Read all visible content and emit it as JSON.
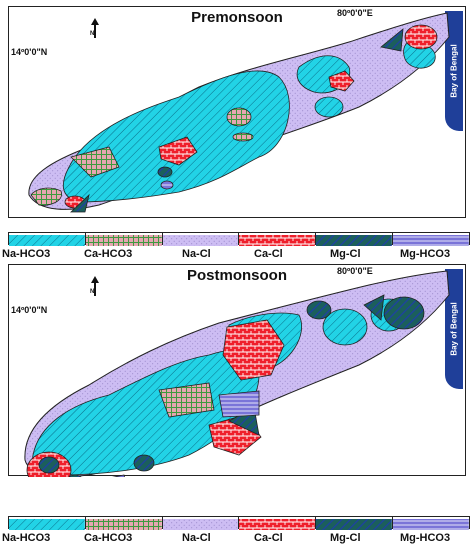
{
  "colors": {
    "na_hco3": "#22d3e6",
    "ca_hco3": "#e7a6b1",
    "na_cl": "#cdbdf3",
    "ca_cl": "#ef1f2b",
    "mg_cl": "#1b5f5c",
    "mg_hco3": "#7a74d8",
    "bay": "#1f3f99"
  },
  "maps": [
    {
      "title": "Premonsoon",
      "lat_label": "14º0'0\"N",
      "lon_label": "80º0'0\"E",
      "bay_label": "Bay of Bengal",
      "north_icon": "north-arrow-icon"
    },
    {
      "title": "Postmonsoon",
      "lat_label": "14º0'0\"N",
      "lon_label": "80º0'0\"E",
      "bay_label": "Bay of Bengal",
      "north_icon": "north-arrow-icon"
    }
  ],
  "legend": {
    "classes": [
      "Na-HCO3",
      "Ca-HCO3",
      "Na-Cl",
      "Ca-Cl",
      "Mg-Cl",
      "Mg-HCO3"
    ]
  }
}
